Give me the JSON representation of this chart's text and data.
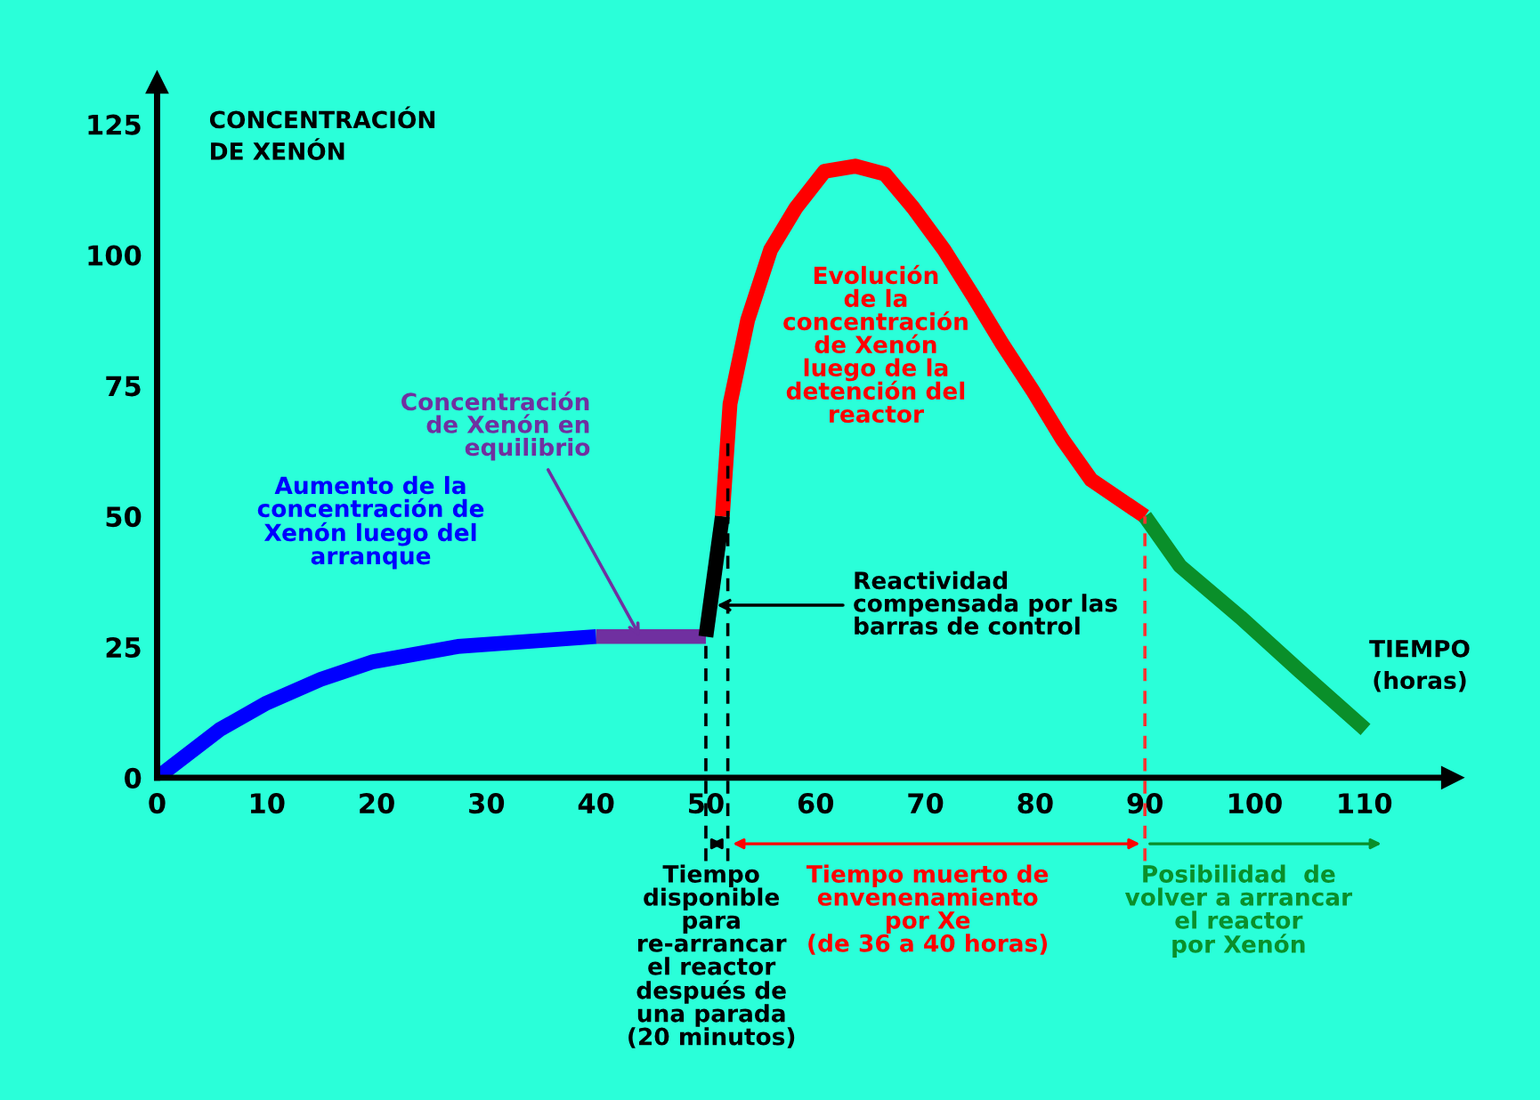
{
  "chart_data": {
    "type": "line",
    "ylabel": "CONCENTRACIÓN\nDE XENÓN",
    "xlabel": "TIEMPO\n(horas)",
    "xlim": [
      0,
      118
    ],
    "ylim": [
      0,
      133
    ],
    "xticks": [
      0,
      10,
      20,
      30,
      40,
      50,
      60,
      70,
      80,
      90,
      100,
      110
    ],
    "yticks": [
      0,
      25,
      50,
      75,
      100,
      125
    ],
    "grid": false,
    "marker": "none",
    "line_style": "solid",
    "series": [
      {
        "color": "#0000ff",
        "x": [
          0,
          5.7,
          10,
          14.9,
          19.7,
          27.4,
          40
        ],
        "values": [
          0,
          9.2,
          14.3,
          18.8,
          22.2,
          25.1,
          27
        ]
      },
      {
        "color": "#7030a0",
        "x": [
          40,
          50
        ],
        "values": [
          27,
          27
        ]
      },
      {
        "color": "#000000",
        "x": [
          50,
          51.5
        ],
        "values": [
          27,
          50
        ]
      },
      {
        "color": "#ff0000",
        "x": [
          51.5,
          52.2,
          53.8,
          55.9,
          58.2,
          60.8,
          63.6,
          66.3,
          68.9,
          71.7,
          74.4,
          77.0,
          79.8,
          82.5,
          85.1,
          90
        ],
        "values": [
          50,
          71.5,
          87.5,
          101,
          109,
          116,
          117,
          115.5,
          109,
          101,
          92,
          83,
          74,
          64.7,
          57,
          50
        ]
      },
      {
        "color": "#0a8f2a",
        "x": [
          90,
          93.2,
          98.7,
          104.1,
          110.1
        ],
        "values": [
          50,
          40.5,
          30.7,
          20.4,
          9.2
        ]
      }
    ],
    "ref_lines": [
      {
        "axis": "x",
        "value": 50,
        "color": "#000000",
        "line_style": "dashed"
      },
      {
        "axis": "x",
        "value": 52,
        "color": "#000000",
        "line_style": "dashed"
      },
      {
        "axis": "x",
        "value": 90,
        "color": "#ff3030",
        "line_style": "dashed"
      }
    ],
    "annotations": [
      "Aumento de la\nconcentración de\nXenón luego del\narranque",
      {
        "text": "Concentración\nde Xenón en\nequilibrio",
        "x": 44,
        "y": 27
      },
      "Evolución\nde la\nconcentración\nde Xenón\nluego de la\ndetención del\nreactor",
      {
        "text": "Reactividad\ncompensada por las\nbarras de control",
        "x": 51,
        "y": 33
      },
      "Tiempo\ndisponible\npara\nre-arrancar\nel reactor\ndespués de\nuna parada\n(20 minutos)",
      "Tiempo muerto de\nenvenenamiento\npor Xe\n(de 36 a 40 horas)",
      "Posibilidad  de\nvolver a arrancar\nel reactor\npor Xenón"
    ]
  }
}
